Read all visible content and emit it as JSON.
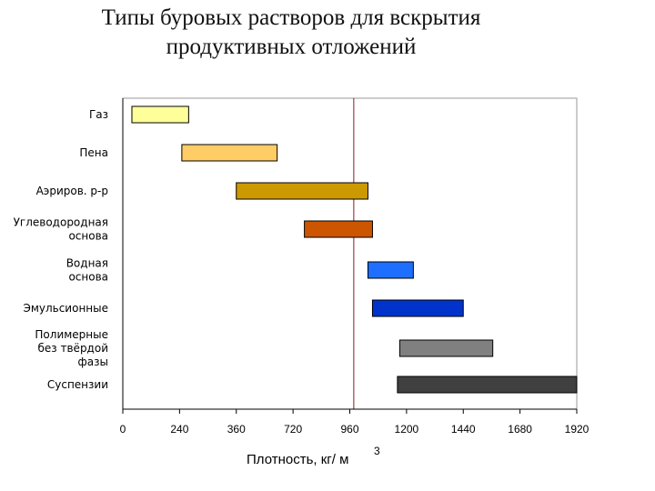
{
  "title_line1": "Типы буровых растворов для вскрытия",
  "title_line2": "продуктивных отложений",
  "chart_data": {
    "type": "bar",
    "orientation": "horizontal-range",
    "xlabel": "Плотность, кг/ м",
    "xlabel_superscript": "3",
    "x_tick_labels": [
      "0",
      "240",
      "360",
      "720",
      "960",
      "1200",
      "1440",
      "1680",
      "1920"
    ],
    "reference_line_at_tick": 4.07,
    "categories": [
      {
        "label_lines": [
          "Газ"
        ],
        "start_tick": 0.04,
        "end_tick": 0.29,
        "color": "#FFFF99"
      },
      {
        "label_lines": [
          "Пена"
        ],
        "start_tick": 0.26,
        "end_tick": 0.68,
        "color": "#FFCC66"
      },
      {
        "label_lines": [
          "Аэриров. р-р"
        ],
        "start_tick": 0.5,
        "end_tick": 1.08,
        "color": "#CC9900"
      },
      {
        "label_lines": [
          "Углеводородная",
          "основа"
        ],
        "start_tick": 0.8,
        "end_tick": 1.1,
        "color": "#CC5500"
      },
      {
        "label_lines": [
          "Водная",
          "основа"
        ],
        "start_tick": 1.08,
        "end_tick": 1.28,
        "color": "#1E6FFF"
      },
      {
        "label_lines": [
          "Эмульсионные"
        ],
        "start_tick": 1.1,
        "end_tick": 1.5,
        "color": "#0033CC"
      },
      {
        "label_lines": [
          "Полимерные",
          "без твёрдой",
          "фазы"
        ],
        "start_tick": 1.22,
        "end_tick": 1.63,
        "color": "#808080"
      },
      {
        "label_lines": [
          "Суспензии"
        ],
        "start_tick": 1.21,
        "end_tick": 2.0,
        "color": "#404040"
      }
    ]
  }
}
